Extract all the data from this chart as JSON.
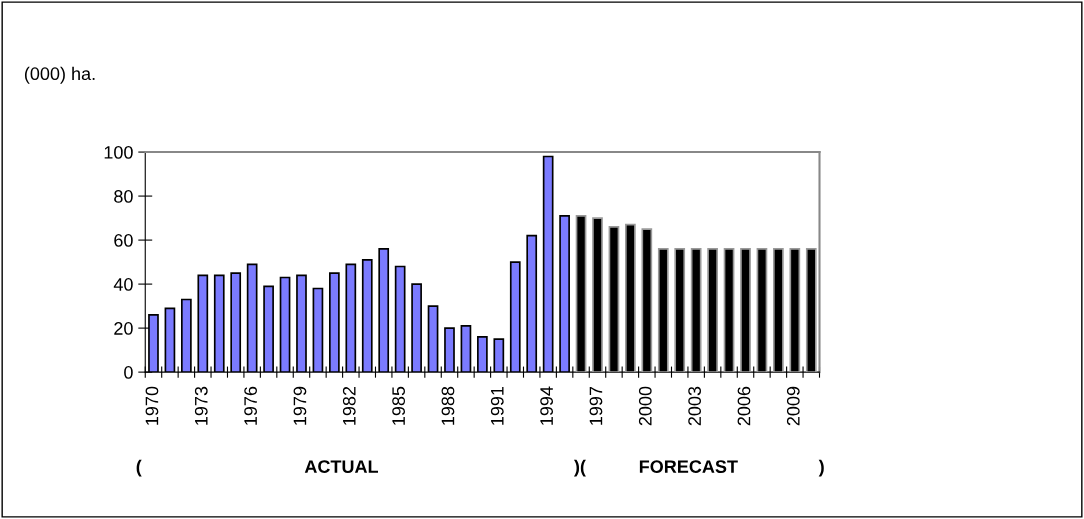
{
  "chart_data": {
    "type": "bar",
    "ylabel": "(000) ha.",
    "categories": [
      "1970",
      null,
      null,
      "1973",
      null,
      null,
      "1976",
      null,
      null,
      "1979",
      null,
      null,
      "1982",
      null,
      null,
      "1985",
      null,
      null,
      "1988",
      null,
      null,
      "1991",
      null,
      null,
      "1994",
      null,
      null,
      "1997",
      null,
      null,
      "2000",
      null,
      null,
      "2003",
      null,
      null,
      "2006",
      null,
      null,
      "2009",
      null
    ],
    "values": [
      26,
      29,
      33,
      44,
      44,
      45,
      49,
      39,
      43,
      44,
      38,
      45,
      49,
      51,
      56,
      48,
      40,
      30,
      20,
      21,
      16,
      15,
      50,
      62,
      98,
      71,
      71,
      70,
      66,
      67,
      65,
      56,
      56,
      56,
      56,
      56,
      56,
      56,
      56,
      56,
      56
    ],
    "colors": [
      "#7b7bff",
      "#7b7bff",
      "#7b7bff",
      "#7b7bff",
      "#7b7bff",
      "#7b7bff",
      "#7b7bff",
      "#7b7bff",
      "#7b7bff",
      "#7b7bff",
      "#7b7bff",
      "#7b7bff",
      "#7b7bff",
      "#7b7bff",
      "#7b7bff",
      "#7b7bff",
      "#7b7bff",
      "#7b7bff",
      "#7b7bff",
      "#7b7bff",
      "#7b7bff",
      "#7b7bff",
      "#7b7bff",
      "#7b7bff",
      "#7b7bff",
      "#7b7bff",
      "#000000",
      "#000000",
      "#000000",
      "#000000",
      "#000000",
      "#000000",
      "#000000",
      "#000000",
      "#000000",
      "#000000",
      "#000000",
      "#000000",
      "#000000",
      "#000000",
      "#000000"
    ],
    "ylim": [
      0,
      100
    ],
    "yticks": [
      0,
      20,
      40,
      60,
      80,
      100
    ],
    "grid": false,
    "legend": false,
    "annotations": [
      "(",
      "ACTUAL",
      ")(",
      "FORECAST",
      ")"
    ]
  }
}
